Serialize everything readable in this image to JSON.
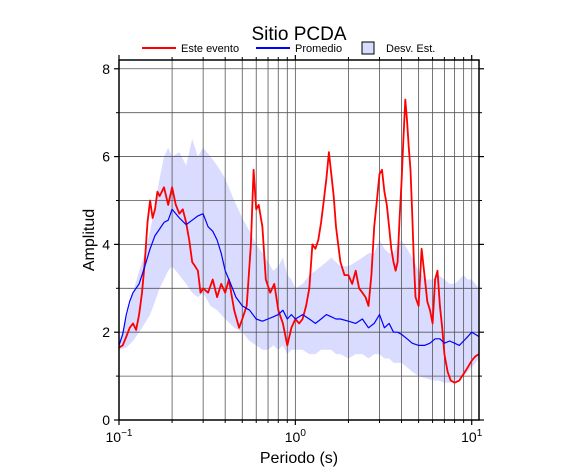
{
  "chart_data": {
    "type": "line",
    "title": "Sitio PCDA",
    "xlabel": "Periodo (s)",
    "ylabel": "Amplitud",
    "x_scale": "log",
    "xlim": [
      0.1,
      11
    ],
    "ylim": [
      0,
      8.2
    ],
    "x_ticks": [
      {
        "value": 0.1,
        "base": "10",
        "exp": "−1"
      },
      {
        "value": 1,
        "base": "10",
        "exp": "0"
      },
      {
        "value": 10,
        "base": "10",
        "exp": "1"
      }
    ],
    "y_ticks": [
      {
        "value": 0,
        "label": "0"
      },
      {
        "value": 2,
        "label": "2"
      },
      {
        "value": 4,
        "label": "4"
      },
      {
        "value": 6,
        "label": "6"
      },
      {
        "value": 8,
        "label": "8"
      }
    ],
    "grid": true,
    "legend_position": "top",
    "legend": [
      {
        "label": "Este evento",
        "kind": "line",
        "color": "#ff0000"
      },
      {
        "label": "Promedio",
        "kind": "line",
        "color": "#0000ff"
      },
      {
        "label": "Desv. Est.",
        "kind": "box",
        "color": "#d9dcff"
      }
    ],
    "colors": {
      "event": "#ff0000",
      "mean": "#0000ff",
      "band": "#d9dcff",
      "grid": "#555555"
    },
    "series": [
      {
        "name": "Este evento",
        "x": [
          0.1,
          0.105,
          0.11,
          0.115,
          0.12,
          0.125,
          0.13,
          0.135,
          0.14,
          0.145,
          0.15,
          0.155,
          0.16,
          0.165,
          0.17,
          0.18,
          0.19,
          0.2,
          0.21,
          0.22,
          0.23,
          0.24,
          0.25,
          0.26,
          0.27,
          0.28,
          0.29,
          0.3,
          0.32,
          0.34,
          0.36,
          0.38,
          0.4,
          0.42,
          0.45,
          0.48,
          0.5,
          0.53,
          0.56,
          0.58,
          0.6,
          0.62,
          0.65,
          0.68,
          0.72,
          0.76,
          0.8,
          0.85,
          0.9,
          0.95,
          1.0,
          1.05,
          1.1,
          1.15,
          1.2,
          1.25,
          1.3,
          1.35,
          1.4,
          1.45,
          1.5,
          1.55,
          1.6,
          1.65,
          1.7,
          1.8,
          1.9,
          2.0,
          2.1,
          2.2,
          2.3,
          2.4,
          2.5,
          2.6,
          2.7,
          2.8,
          2.9,
          3.0,
          3.1,
          3.2,
          3.3,
          3.4,
          3.5,
          3.6,
          3.7,
          3.8,
          3.9,
          4.0,
          4.1,
          4.2,
          4.3,
          4.4,
          4.5,
          4.6,
          4.7,
          4.8,
          5.0,
          5.2,
          5.4,
          5.6,
          5.8,
          6.0,
          6.2,
          6.4,
          6.6,
          6.8,
          7.0,
          7.3,
          7.6,
          8.0,
          8.5,
          9.0,
          9.5,
          10.0,
          10.5,
          11.0
        ],
        "y": [
          1.65,
          1.7,
          1.9,
          2.1,
          2.2,
          2.05,
          2.4,
          2.9,
          3.6,
          4.5,
          5.0,
          4.6,
          4.8,
          5.2,
          5.1,
          5.3,
          4.9,
          5.3,
          4.9,
          4.7,
          4.8,
          4.5,
          4.1,
          3.6,
          3.5,
          3.4,
          2.9,
          3.0,
          2.9,
          3.2,
          2.8,
          3.1,
          2.9,
          3.2,
          2.5,
          2.1,
          2.3,
          2.6,
          4.0,
          5.7,
          4.8,
          4.9,
          4.4,
          3.2,
          2.9,
          3.1,
          2.5,
          2.2,
          1.7,
          2.1,
          2.3,
          2.2,
          2.3,
          2.6,
          3.0,
          4.0,
          3.9,
          4.1,
          4.5,
          5.0,
          5.5,
          6.1,
          5.6,
          5.1,
          4.4,
          3.6,
          3.3,
          3.3,
          3.1,
          3.4,
          3.0,
          2.9,
          2.8,
          2.6,
          3.3,
          4.4,
          5.0,
          5.6,
          5.7,
          5.2,
          4.9,
          4.4,
          3.9,
          3.6,
          3.4,
          3.6,
          4.6,
          5.4,
          6.4,
          7.3,
          6.8,
          6.2,
          5.7,
          4.7,
          3.6,
          2.8,
          2.6,
          3.9,
          3.3,
          2.7,
          2.5,
          2.2,
          3.2,
          3.4,
          2.6,
          2.1,
          1.5,
          1.1,
          0.9,
          0.85,
          0.9,
          1.05,
          1.2,
          1.35,
          1.45,
          1.5
        ]
      },
      {
        "name": "Promedio",
        "x": [
          0.1,
          0.105,
          0.11,
          0.115,
          0.12,
          0.125,
          0.13,
          0.135,
          0.14,
          0.15,
          0.16,
          0.17,
          0.18,
          0.19,
          0.2,
          0.22,
          0.24,
          0.26,
          0.28,
          0.3,
          0.32,
          0.34,
          0.36,
          0.38,
          0.4,
          0.43,
          0.46,
          0.5,
          0.55,
          0.6,
          0.65,
          0.7,
          0.75,
          0.8,
          0.85,
          0.9,
          0.95,
          1.0,
          1.1,
          1.2,
          1.3,
          1.4,
          1.5,
          1.6,
          1.7,
          1.8,
          2.0,
          2.2,
          2.4,
          2.6,
          2.8,
          3.0,
          3.2,
          3.4,
          3.6,
          3.8,
          4.0,
          4.3,
          4.6,
          5.0,
          5.4,
          5.8,
          6.2,
          6.6,
          7.0,
          7.5,
          8.0,
          8.5,
          9.0,
          9.5,
          10.0,
          10.5,
          11.0
        ],
        "y": [
          1.7,
          1.95,
          2.4,
          2.7,
          2.9,
          3.0,
          3.1,
          3.3,
          3.5,
          3.9,
          4.2,
          4.35,
          4.5,
          4.55,
          4.8,
          4.6,
          4.45,
          4.55,
          4.65,
          4.7,
          4.4,
          4.3,
          4.1,
          3.8,
          3.4,
          3.1,
          2.8,
          2.6,
          2.5,
          2.3,
          2.25,
          2.3,
          2.35,
          2.4,
          2.5,
          2.3,
          2.4,
          2.3,
          2.4,
          2.3,
          2.2,
          2.3,
          2.4,
          2.35,
          2.3,
          2.3,
          2.25,
          2.2,
          2.3,
          2.1,
          2.2,
          2.4,
          2.1,
          2.2,
          2.0,
          2.0,
          1.95,
          1.85,
          1.75,
          1.7,
          1.7,
          1.75,
          1.85,
          1.85,
          1.75,
          1.8,
          1.75,
          1.7,
          1.8,
          1.9,
          2.0,
          1.95,
          1.9
        ]
      }
    ],
    "band": {
      "name": "Desv. Est.",
      "x": [
        0.1,
        0.11,
        0.12,
        0.13,
        0.14,
        0.15,
        0.16,
        0.17,
        0.18,
        0.19,
        0.2,
        0.22,
        0.24,
        0.26,
        0.28,
        0.3,
        0.33,
        0.36,
        0.4,
        0.45,
        0.5,
        0.55,
        0.6,
        0.65,
        0.7,
        0.75,
        0.8,
        0.85,
        0.9,
        0.95,
        1.0,
        1.1,
        1.2,
        1.3,
        1.4,
        1.5,
        1.6,
        1.7,
        1.8,
        2.0,
        2.2,
        2.4,
        2.6,
        2.8,
        3.0,
        3.2,
        3.4,
        3.6,
        3.8,
        4.0,
        4.3,
        4.6,
        5.0,
        5.5,
        6.0,
        6.5,
        7.0,
        7.5,
        8.0,
        8.5,
        9.0,
        9.5,
        10.0,
        10.5,
        11.0
      ],
      "upper": [
        1.8,
        2.3,
        2.9,
        3.4,
        3.8,
        4.3,
        4.9,
        5.5,
        6.0,
        6.2,
        6.0,
        6.1,
        5.8,
        6.4,
        6.0,
        6.2,
        6.0,
        5.8,
        5.5,
        5.0,
        4.6,
        4.3,
        4.0,
        3.8,
        3.6,
        3.4,
        3.5,
        3.7,
        3.3,
        3.2,
        3.0,
        3.1,
        3.3,
        3.4,
        3.5,
        3.6,
        3.7,
        3.6,
        3.5,
        3.5,
        3.6,
        3.7,
        3.8,
        3.8,
        4.1,
        3.9,
        3.8,
        3.8,
        4.0,
        4.1,
        3.9,
        3.7,
        3.4,
        3.2,
        3.2,
        3.3,
        3.2,
        3.1,
        3.1,
        3.2,
        3.3,
        3.2,
        3.2,
        3.1,
        3.0
      ],
      "lower": [
        1.6,
        1.65,
        1.8,
        2.0,
        2.2,
        2.4,
        2.7,
        3.0,
        3.2,
        3.4,
        3.5,
        3.3,
        3.1,
        2.9,
        2.8,
        2.9,
        2.6,
        2.5,
        2.3,
        2.1,
        2.0,
        1.8,
        1.7,
        1.6,
        1.6,
        1.7,
        1.6,
        1.7,
        1.5,
        1.6,
        1.6,
        1.6,
        1.5,
        1.5,
        1.6,
        1.6,
        1.6,
        1.5,
        1.5,
        1.4,
        1.5,
        1.5,
        1.4,
        1.5,
        1.5,
        1.4,
        1.4,
        1.3,
        1.3,
        1.3,
        1.2,
        1.1,
        1.0,
        0.95,
        0.9,
        0.9,
        0.85,
        0.85,
        0.9,
        0.95,
        1.0,
        1.1,
        1.2,
        1.3,
        1.4
      ]
    }
  }
}
